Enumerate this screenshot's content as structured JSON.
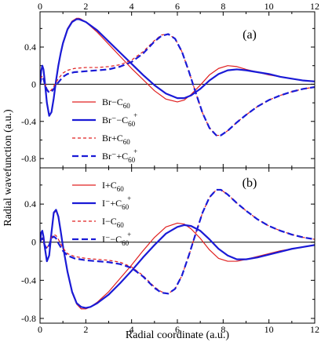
{
  "chart_data": {
    "type": "line",
    "xlabel": "Radial coordinate (a.u.)",
    "ylabel": "Radial wavefunction (a.u.)",
    "xlim": [
      0,
      12
    ],
    "x_ticks": [
      0,
      2,
      4,
      6,
      8,
      10,
      12
    ],
    "x_tick_labels": [
      "0",
      "2",
      "4",
      "6",
      "8",
      "10",
      "12"
    ],
    "panels": [
      {
        "tag": "(a)",
        "ylim": [
          -0.9,
          0.78
        ],
        "y_ticks": [
          -0.8,
          -0.4,
          0,
          0.4
        ],
        "y_tick_labels": [
          "-0.8",
          "-0.4",
          "0",
          "0.4"
        ],
        "legend_position": "lower-left",
        "series": [
          {
            "name": "Br−C60",
            "label": {
              "base": "Br−C",
              "sub": "60",
              "sup": ""
            },
            "color": "#e02020",
            "style": "solid",
            "width": 1.2,
            "x": [
              0,
              0.05,
              0.1,
              0.15,
              0.2,
              0.3,
              0.4,
              0.5,
              0.6,
              0.7,
              0.8,
              0.9,
              1.0,
              1.2,
              1.4,
              1.6,
              1.7,
              1.8,
              2.0,
              2.5,
              3.0,
              3.5,
              4.0,
              4.5,
              5.0,
              5.5,
              6.0,
              6.3,
              6.6,
              7.0,
              7.4,
              7.8,
              8.2,
              8.6,
              9.0,
              9.5,
              10,
              10.5,
              11,
              11.5,
              12
            ],
            "y": [
              0,
              0.14,
              0.2,
              0.16,
              0.05,
              -0.2,
              -0.34,
              -0.3,
              -0.15,
              0.04,
              0.2,
              0.34,
              0.45,
              0.6,
              0.68,
              0.71,
              0.71,
              0.7,
              0.67,
              0.56,
              0.43,
              0.3,
              0.17,
              0.05,
              -0.07,
              -0.16,
              -0.19,
              -0.17,
              -0.11,
              -0.01,
              0.1,
              0.17,
              0.2,
              0.19,
              0.16,
              0.13,
              0.1,
              0.08,
              0.06,
              0.04,
              0.03
            ]
          },
          {
            "name": "Br−C60+",
            "label": {
              "base": "Br⁻−C",
              "sub": "60",
              "sup": "+"
            },
            "color": "#1a1ad6",
            "style": "solid",
            "width": 2.2,
            "x": [
              0,
              0.05,
              0.1,
              0.15,
              0.2,
              0.3,
              0.4,
              0.5,
              0.6,
              0.7,
              0.8,
              0.9,
              1.0,
              1.2,
              1.4,
              1.6,
              1.7,
              1.8,
              2.0,
              2.5,
              3.0,
              3.5,
              4.0,
              4.5,
              5.0,
              5.5,
              6.0,
              6.3,
              6.6,
              7.0,
              7.4,
              7.8,
              8.2,
              8.6,
              9.0,
              9.5,
              10,
              10.5,
              11,
              11.5,
              12
            ],
            "y": [
              0,
              0.14,
              0.2,
              0.16,
              0.05,
              -0.2,
              -0.34,
              -0.3,
              -0.15,
              0.04,
              0.2,
              0.33,
              0.44,
              0.59,
              0.67,
              0.7,
              0.7,
              0.69,
              0.67,
              0.58,
              0.46,
              0.34,
              0.22,
              0.1,
              -0.01,
              -0.1,
              -0.15,
              -0.15,
              -0.12,
              -0.05,
              0.04,
              0.11,
              0.15,
              0.16,
              0.15,
              0.13,
              0.11,
              0.08,
              0.06,
              0.04,
              0.03
            ]
          },
          {
            "name": "Br+C60",
            "label": {
              "base": "Br+C",
              "sub": "60",
              "sup": ""
            },
            "color": "#e02020",
            "style": "dashed",
            "width": 1.2,
            "x": [
              0,
              0.05,
              0.1,
              0.15,
              0.2,
              0.3,
              0.4,
              0.5,
              0.6,
              0.7,
              0.8,
              1.0,
              1.2,
              1.5,
              2.0,
              2.5,
              3.0,
              3.5,
              4.0,
              4.5,
              5.0,
              5.3,
              5.6,
              5.9,
              6.2,
              6.5,
              6.8,
              7.1,
              7.4,
              7.7,
              7.9,
              8.2,
              8.6,
              9.0,
              9.5,
              10,
              10.5,
              11,
              11.5,
              12
            ],
            "y": [
              0,
              0.07,
              0.09,
              0.07,
              0.02,
              -0.05,
              -0.08,
              -0.06,
              -0.02,
              0.02,
              0.06,
              0.12,
              0.15,
              0.17,
              0.18,
              0.18,
              0.19,
              0.21,
              0.26,
              0.35,
              0.47,
              0.53,
              0.54,
              0.49,
              0.35,
              0.14,
              -0.09,
              -0.31,
              -0.47,
              -0.55,
              -0.55,
              -0.5,
              -0.41,
              -0.33,
              -0.24,
              -0.17,
              -0.12,
              -0.08,
              -0.05,
              -0.03
            ]
          },
          {
            "name": "Br−+C60+",
            "label": {
              "base": "Br⁻+C",
              "sub": "60",
              "sup": "+"
            },
            "color": "#1a1ad6",
            "style": "dashed",
            "width": 2.2,
            "x": [
              0,
              0.05,
              0.1,
              0.15,
              0.2,
              0.3,
              0.4,
              0.5,
              0.6,
              0.7,
              0.8,
              1.0,
              1.2,
              1.5,
              2.0,
              2.5,
              3.0,
              3.5,
              4.0,
              4.5,
              5.0,
              5.3,
              5.6,
              5.9,
              6.2,
              6.5,
              6.8,
              7.1,
              7.4,
              7.7,
              7.9,
              8.2,
              8.6,
              9.0,
              9.5,
              10,
              10.5,
              11,
              11.5,
              12
            ],
            "y": [
              0,
              0.06,
              0.08,
              0.06,
              0.01,
              -0.06,
              -0.09,
              -0.08,
              -0.05,
              -0.01,
              0.02,
              0.08,
              0.11,
              0.13,
              0.14,
              0.15,
              0.16,
              0.19,
              0.24,
              0.33,
              0.46,
              0.52,
              0.54,
              0.49,
              0.35,
              0.14,
              -0.09,
              -0.31,
              -0.47,
              -0.55,
              -0.55,
              -0.5,
              -0.41,
              -0.33,
              -0.24,
              -0.17,
              -0.12,
              -0.08,
              -0.05,
              -0.03
            ]
          }
        ]
      },
      {
        "tag": "(b)",
        "ylim": [
          -0.85,
          0.78
        ],
        "y_ticks": [
          -0.8,
          -0.4,
          0,
          0.4
        ],
        "y_tick_labels": [
          "-0.8",
          "-0.4",
          "0",
          "0.4"
        ],
        "legend_position": "top-left",
        "series": [
          {
            "name": "I+C60",
            "label": {
              "base": "I+C",
              "sub": "60",
              "sup": ""
            },
            "color": "#e02020",
            "style": "solid",
            "width": 1.2,
            "x": [
              0,
              0.05,
              0.1,
              0.15,
              0.2,
              0.3,
              0.4,
              0.5,
              0.6,
              0.7,
              0.8,
              0.9,
              1.0,
              1.2,
              1.4,
              1.6,
              1.8,
              2.0,
              2.2,
              2.5,
              3.0,
              3.5,
              4.0,
              4.5,
              5.0,
              5.5,
              6.0,
              6.3,
              6.6,
              7.0,
              7.4,
              7.8,
              8.2,
              8.6,
              9.0,
              9.5,
              10,
              10.5,
              11,
              11.5,
              12
            ],
            "y": [
              0,
              0.1,
              0.12,
              0.06,
              -0.04,
              -0.2,
              -0.14,
              0.1,
              0.3,
              0.33,
              0.26,
              0.12,
              -0.04,
              -0.32,
              -0.53,
              -0.65,
              -0.7,
              -0.7,
              -0.68,
              -0.63,
              -0.52,
              -0.38,
              -0.24,
              -0.09,
              0.05,
              0.16,
              0.2,
              0.19,
              0.14,
              0.04,
              -0.08,
              -0.17,
              -0.2,
              -0.2,
              -0.18,
              -0.15,
              -0.12,
              -0.09,
              -0.07,
              -0.05,
              -0.03
            ]
          },
          {
            "name": "I−+C60+",
            "label": {
              "base": "I⁻+C",
              "sub": "60",
              "sup": "+"
            },
            "color": "#1a1ad6",
            "style": "solid",
            "width": 2.2,
            "x": [
              0,
              0.05,
              0.1,
              0.15,
              0.2,
              0.3,
              0.4,
              0.5,
              0.6,
              0.7,
              0.8,
              0.9,
              1.0,
              1.2,
              1.4,
              1.6,
              1.8,
              2.0,
              2.2,
              2.5,
              3.0,
              3.5,
              4.0,
              4.5,
              5.0,
              5.5,
              6.0,
              6.3,
              6.6,
              7.0,
              7.4,
              7.8,
              8.2,
              8.6,
              9.0,
              9.5,
              10,
              10.5,
              11,
              11.5,
              12
            ],
            "y": [
              0,
              0.1,
              0.12,
              0.06,
              -0.04,
              -0.2,
              -0.14,
              0.1,
              0.31,
              0.34,
              0.27,
              0.12,
              -0.04,
              -0.31,
              -0.52,
              -0.64,
              -0.68,
              -0.69,
              -0.68,
              -0.64,
              -0.55,
              -0.43,
              -0.3,
              -0.16,
              -0.03,
              0.09,
              0.16,
              0.18,
              0.17,
              0.12,
              0.03,
              -0.07,
              -0.14,
              -0.18,
              -0.18,
              -0.16,
              -0.13,
              -0.1,
              -0.07,
              -0.05,
              -0.03
            ]
          },
          {
            "name": "I−C60",
            "label": {
              "base": "I−C",
              "sub": "60",
              "sup": ""
            },
            "color": "#e02020",
            "style": "dashed",
            "width": 1.2,
            "x": [
              0,
              0.05,
              0.1,
              0.15,
              0.2,
              0.3,
              0.4,
              0.5,
              0.6,
              0.7,
              0.8,
              1.0,
              1.2,
              1.5,
              2.0,
              2.5,
              3.0,
              3.5,
              4.0,
              4.5,
              5.0,
              5.3,
              5.6,
              5.9,
              6.2,
              6.5,
              6.8,
              7.1,
              7.4,
              7.7,
              7.9,
              8.2,
              8.6,
              9.0,
              9.5,
              10,
              10.5,
              11,
              11.5,
              12
            ],
            "y": [
              0,
              0.04,
              0.05,
              0.02,
              -0.02,
              -0.06,
              -0.02,
              0.05,
              0.08,
              0.07,
              0.03,
              -0.06,
              -0.12,
              -0.15,
              -0.17,
              -0.18,
              -0.19,
              -0.21,
              -0.26,
              -0.35,
              -0.47,
              -0.52,
              -0.54,
              -0.49,
              -0.35,
              -0.14,
              0.09,
              0.31,
              0.47,
              0.55,
              0.55,
              0.5,
              0.41,
              0.33,
              0.24,
              0.17,
              0.12,
              0.08,
              0.05,
              0.03
            ]
          },
          {
            "name": "I−−C60+",
            "label": {
              "base": "I⁻−C",
              "sub": "60",
              "sup": "+"
            },
            "color": "#1a1ad6",
            "style": "dashed",
            "width": 2.2,
            "x": [
              0,
              0.05,
              0.1,
              0.15,
              0.2,
              0.3,
              0.4,
              0.5,
              0.6,
              0.7,
              0.8,
              1.0,
              1.2,
              1.5,
              2.0,
              2.5,
              3.0,
              3.5,
              4.0,
              4.5,
              5.0,
              5.3,
              5.6,
              5.9,
              6.2,
              6.5,
              6.8,
              7.1,
              7.4,
              7.7,
              7.9,
              8.2,
              8.6,
              9.0,
              9.5,
              10,
              10.5,
              11,
              11.5,
              12
            ],
            "y": [
              0,
              0.03,
              0.04,
              0.01,
              -0.03,
              -0.07,
              -0.03,
              0.04,
              0.06,
              0.04,
              -0.01,
              -0.09,
              -0.14,
              -0.17,
              -0.19,
              -0.2,
              -0.21,
              -0.23,
              -0.27,
              -0.36,
              -0.48,
              -0.53,
              -0.54,
              -0.49,
              -0.35,
              -0.14,
              0.09,
              0.31,
              0.47,
              0.55,
              0.55,
              0.5,
              0.41,
              0.33,
              0.24,
              0.17,
              0.12,
              0.08,
              0.05,
              0.03
            ]
          }
        ]
      }
    ]
  }
}
